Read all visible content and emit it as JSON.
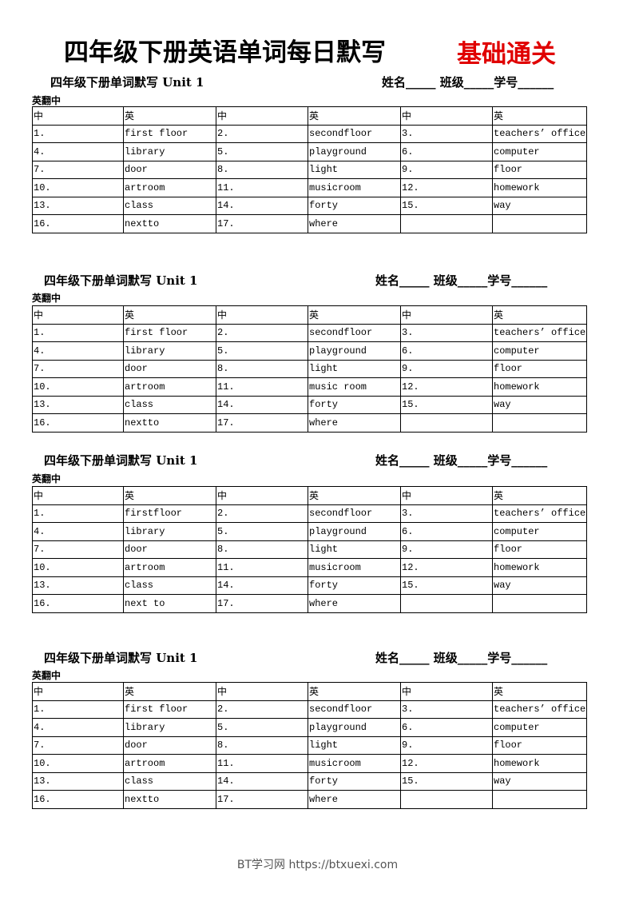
{
  "title": "四年级下册英语单词每日默写",
  "title_highlight": "基础通关",
  "sections": [
    {
      "heading": "四年级下册单词默写 Unit 1",
      "info": "姓名_____ 班级_____学号______",
      "label": "英翻中",
      "header": [
        "中",
        "英",
        "中",
        "英",
        "中",
        "英"
      ],
      "rows": [
        [
          "1.",
          "first floor",
          "2.",
          "secondfloor",
          "3.",
          "teachers’ office"
        ],
        [
          "4.",
          "library",
          "5.",
          "playground",
          "6.",
          "computer"
        ],
        [
          "7.",
          "door",
          "8.",
          "light",
          "9.",
          "floor"
        ],
        [
          "10.",
          "artroom",
          "11.",
          "musicroom",
          "12.",
          "homework"
        ],
        [
          "13.",
          "class",
          "14.",
          "forty",
          "15.",
          "way"
        ],
        [
          "16.",
          "nextto",
          "17.",
          "where"
        ]
      ]
    },
    {
      "heading": "四年级下册单词默写 Unit 1",
      "info": "姓名_____ 班级_____学号______",
      "label": "英翻中",
      "header": [
        "中",
        "英",
        "中",
        "英",
        "中",
        "英"
      ],
      "rows": [
        [
          "1.",
          "first floor",
          "2.",
          "secondfloor",
          "3.",
          "teachers’ office"
        ],
        [
          "4.",
          "library",
          "5.",
          "playground",
          "6.",
          "computer"
        ],
        [
          "7.",
          "door",
          "8.",
          "light",
          "9.",
          "floor"
        ],
        [
          "10.",
          "artroom",
          "11.",
          "music room",
          "12.",
          "homework"
        ],
        [
          "13.",
          "class",
          "14.",
          "forty",
          "15.",
          "way"
        ],
        [
          "16.",
          "nextto",
          "17.",
          "where"
        ]
      ]
    },
    {
      "heading": "四年级下册单词默写 Unit 1",
      "info": "姓名_____ 班级_____学号______",
      "label": "英翻中",
      "header": [
        "中",
        "英",
        "中",
        "英",
        "中",
        "英"
      ],
      "rows": [
        [
          "1.",
          "firstfloor",
          "2.",
          "secondfloor",
          "3.",
          "teachers’ office"
        ],
        [
          "4.",
          "library",
          "5.",
          "playground",
          "6.",
          "computer"
        ],
        [
          "7.",
          "door",
          "8.",
          "light",
          "9.",
          "floor"
        ],
        [
          "10.",
          "artroom",
          "11.",
          "musicroom",
          "12.",
          "homework"
        ],
        [
          "13.",
          "class",
          "14.",
          "forty",
          "15.",
          "way"
        ],
        [
          "16.",
          "next to",
          "17.",
          "where"
        ]
      ]
    },
    {
      "heading": "四年级下册单词默写 Unit 1",
      "info": "姓名_____ 班级_____学号______",
      "label": "英翻中",
      "header": [
        "中",
        "英",
        "中",
        "英",
        "中",
        "英"
      ],
      "rows": [
        [
          "1.",
          "first floor",
          "2.",
          "secondfloor",
          "3.",
          "teachers’ office"
        ],
        [
          "4.",
          "library",
          "5.",
          "playground",
          "6.",
          "computer"
        ],
        [
          "7.",
          "door",
          "8.",
          "light",
          "9.",
          "floor"
        ],
        [
          "10.",
          "artroom",
          "11.",
          "musicroom",
          "12.",
          "homework"
        ],
        [
          "13.",
          "class",
          "14.",
          "forty",
          "15.",
          "way"
        ],
        [
          "16.",
          "nextto",
          "17.",
          "where"
        ]
      ]
    }
  ],
  "footer": "BT学习网 https://btxuexi.com"
}
